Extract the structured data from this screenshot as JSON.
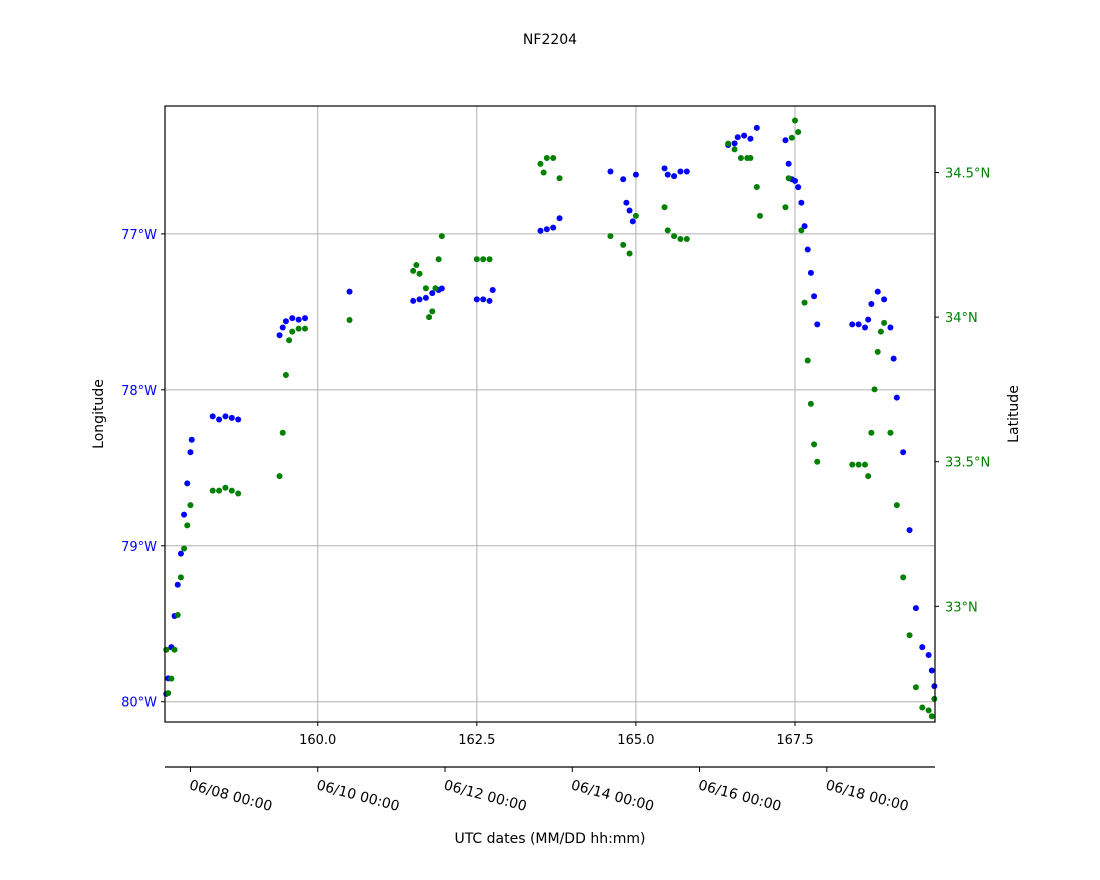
{
  "chart_data": {
    "type": "scatter",
    "title": "NF2204",
    "xlabel": "UTC dates (MM/DD hh:mm)",
    "ylabel_left": "Longitude",
    "ylabel_right": "Latitude",
    "xlim": [
      157.6,
      169.7
    ],
    "ylim_left": [
      -80.13,
      -76.18
    ],
    "ylim_right": [
      32.6,
      34.73
    ],
    "grid": true,
    "x_ticks": [
      160.0,
      162.5,
      165.0,
      167.5
    ],
    "x_tick_labels": [
      "160.0",
      "162.5",
      "165.0",
      "167.5"
    ],
    "left_ticks": [
      -77,
      -78,
      -79,
      -80
    ],
    "left_tick_labels": [
      "77°W",
      "78°W",
      "79°W",
      "80°W"
    ],
    "right_ticks": [
      34.5,
      34.0,
      33.5,
      33.0
    ],
    "right_tick_labels": [
      "34.5°N",
      "34°N",
      "33.5°N",
      "33°N"
    ],
    "date_axis": {
      "ticks": [
        158.0,
        160.0,
        162.0,
        164.0,
        166.0,
        168.0
      ],
      "labels": [
        "06/08 00:00",
        "06/10 00:00",
        "06/12 00:00",
        "06/14 00:00",
        "06/16 00:00",
        "06/18 00:00"
      ]
    },
    "colors": {
      "longitude": "#0000ff",
      "latitude": "#008000"
    },
    "longitude_series": [
      [
        157.62,
        -79.95
      ],
      [
        157.65,
        -79.85
      ],
      [
        157.7,
        -79.65
      ],
      [
        157.75,
        -79.45
      ],
      [
        157.8,
        -79.25
      ],
      [
        157.85,
        -79.05
      ],
      [
        157.9,
        -78.8
      ],
      [
        157.95,
        -78.6
      ],
      [
        158.0,
        -78.4
      ],
      [
        158.02,
        -78.32
      ],
      [
        158.35,
        -78.17
      ],
      [
        158.45,
        -78.19
      ],
      [
        158.55,
        -78.17
      ],
      [
        158.65,
        -78.18
      ],
      [
        158.75,
        -78.19
      ],
      [
        159.4,
        -77.65
      ],
      [
        159.45,
        -77.6
      ],
      [
        159.5,
        -77.56
      ],
      [
        159.6,
        -77.54
      ],
      [
        159.7,
        -77.55
      ],
      [
        159.8,
        -77.54
      ],
      [
        160.5,
        -77.37
      ],
      [
        161.5,
        -77.43
      ],
      [
        161.6,
        -77.42
      ],
      [
        161.7,
        -77.41
      ],
      [
        161.8,
        -77.38
      ],
      [
        161.9,
        -77.36
      ],
      [
        161.95,
        -77.35
      ],
      [
        162.5,
        -77.42
      ],
      [
        162.6,
        -77.42
      ],
      [
        162.7,
        -77.43
      ],
      [
        162.75,
        -77.36
      ],
      [
        163.5,
        -76.98
      ],
      [
        163.6,
        -76.97
      ],
      [
        163.7,
        -76.96
      ],
      [
        163.8,
        -76.9
      ],
      [
        164.6,
        -76.6
      ],
      [
        164.8,
        -76.65
      ],
      [
        164.85,
        -76.8
      ],
      [
        164.9,
        -76.85
      ],
      [
        164.95,
        -76.92
      ],
      [
        165.0,
        -76.62
      ],
      [
        165.45,
        -76.58
      ],
      [
        165.5,
        -76.62
      ],
      [
        165.6,
        -76.63
      ],
      [
        165.7,
        -76.6
      ],
      [
        165.8,
        -76.6
      ],
      [
        166.45,
        -76.43
      ],
      [
        166.55,
        -76.42
      ],
      [
        166.6,
        -76.38
      ],
      [
        166.7,
        -76.37
      ],
      [
        166.8,
        -76.39
      ],
      [
        166.9,
        -76.32
      ],
      [
        167.35,
        -76.4
      ],
      [
        167.4,
        -76.55
      ],
      [
        167.45,
        -76.65
      ],
      [
        167.5,
        -76.66
      ],
      [
        167.55,
        -76.7
      ],
      [
        167.6,
        -76.8
      ],
      [
        167.65,
        -76.95
      ],
      [
        167.7,
        -77.1
      ],
      [
        167.75,
        -77.25
      ],
      [
        167.8,
        -77.4
      ],
      [
        167.85,
        -77.58
      ],
      [
        168.4,
        -77.58
      ],
      [
        168.5,
        -77.58
      ],
      [
        168.6,
        -77.6
      ],
      [
        168.65,
        -77.55
      ],
      [
        168.7,
        -77.45
      ],
      [
        168.8,
        -77.37
      ],
      [
        168.9,
        -77.42
      ],
      [
        169.0,
        -77.6
      ],
      [
        169.05,
        -77.8
      ],
      [
        169.1,
        -78.05
      ],
      [
        169.2,
        -78.4
      ],
      [
        169.3,
        -78.9
      ],
      [
        169.4,
        -79.4
      ],
      [
        169.5,
        -79.65
      ],
      [
        169.6,
        -79.7
      ],
      [
        169.65,
        -79.8
      ],
      [
        169.69,
        -79.9
      ]
    ],
    "latitude_series": [
      [
        157.62,
        32.85
      ],
      [
        157.65,
        32.7
      ],
      [
        157.7,
        32.75
      ],
      [
        157.75,
        32.85
      ],
      [
        157.8,
        32.97
      ],
      [
        157.85,
        33.1
      ],
      [
        157.9,
        33.2
      ],
      [
        157.95,
        33.28
      ],
      [
        158.0,
        33.35
      ],
      [
        158.35,
        33.4
      ],
      [
        158.45,
        33.4
      ],
      [
        158.55,
        33.41
      ],
      [
        158.65,
        33.4
      ],
      [
        158.75,
        33.39
      ],
      [
        159.4,
        33.45
      ],
      [
        159.45,
        33.6
      ],
      [
        159.5,
        33.8
      ],
      [
        159.55,
        33.92
      ],
      [
        159.6,
        33.95
      ],
      [
        159.7,
        33.96
      ],
      [
        159.8,
        33.96
      ],
      [
        160.5,
        33.99
      ],
      [
        161.5,
        34.16
      ],
      [
        161.55,
        34.18
      ],
      [
        161.6,
        34.15
      ],
      [
        161.7,
        34.1
      ],
      [
        161.75,
        34.0
      ],
      [
        161.8,
        34.02
      ],
      [
        161.85,
        34.1
      ],
      [
        161.9,
        34.2
      ],
      [
        161.95,
        34.28
      ],
      [
        162.5,
        34.2
      ],
      [
        162.6,
        34.2
      ],
      [
        162.7,
        34.2
      ],
      [
        163.5,
        34.53
      ],
      [
        163.55,
        34.5
      ],
      [
        163.6,
        34.55
      ],
      [
        163.7,
        34.55
      ],
      [
        163.8,
        34.48
      ],
      [
        164.6,
        34.28
      ],
      [
        164.8,
        34.25
      ],
      [
        164.9,
        34.22
      ],
      [
        165.0,
        34.35
      ],
      [
        165.45,
        34.38
      ],
      [
        165.5,
        34.3
      ],
      [
        165.6,
        34.28
      ],
      [
        165.7,
        34.27
      ],
      [
        165.8,
        34.27
      ],
      [
        166.45,
        34.6
      ],
      [
        166.55,
        34.58
      ],
      [
        166.65,
        34.55
      ],
      [
        166.75,
        34.55
      ],
      [
        166.8,
        34.55
      ],
      [
        166.9,
        34.45
      ],
      [
        166.95,
        34.35
      ],
      [
        167.35,
        34.38
      ],
      [
        167.4,
        34.48
      ],
      [
        167.45,
        34.62
      ],
      [
        167.5,
        34.68
      ],
      [
        167.55,
        34.64
      ],
      [
        167.6,
        34.3
      ],
      [
        167.65,
        34.05
      ],
      [
        167.7,
        33.85
      ],
      [
        167.75,
        33.7
      ],
      [
        167.8,
        33.56
      ],
      [
        167.85,
        33.5
      ],
      [
        168.4,
        33.49
      ],
      [
        168.5,
        33.49
      ],
      [
        168.6,
        33.49
      ],
      [
        168.65,
        33.45
      ],
      [
        168.7,
        33.6
      ],
      [
        168.75,
        33.75
      ],
      [
        168.8,
        33.88
      ],
      [
        168.85,
        33.95
      ],
      [
        168.9,
        33.98
      ],
      [
        169.0,
        33.6
      ],
      [
        169.1,
        33.35
      ],
      [
        169.2,
        33.1
      ],
      [
        169.3,
        32.9
      ],
      [
        169.4,
        32.72
      ],
      [
        169.5,
        32.65
      ],
      [
        169.6,
        32.64
      ],
      [
        169.65,
        32.62
      ],
      [
        169.69,
        32.68
      ]
    ]
  }
}
